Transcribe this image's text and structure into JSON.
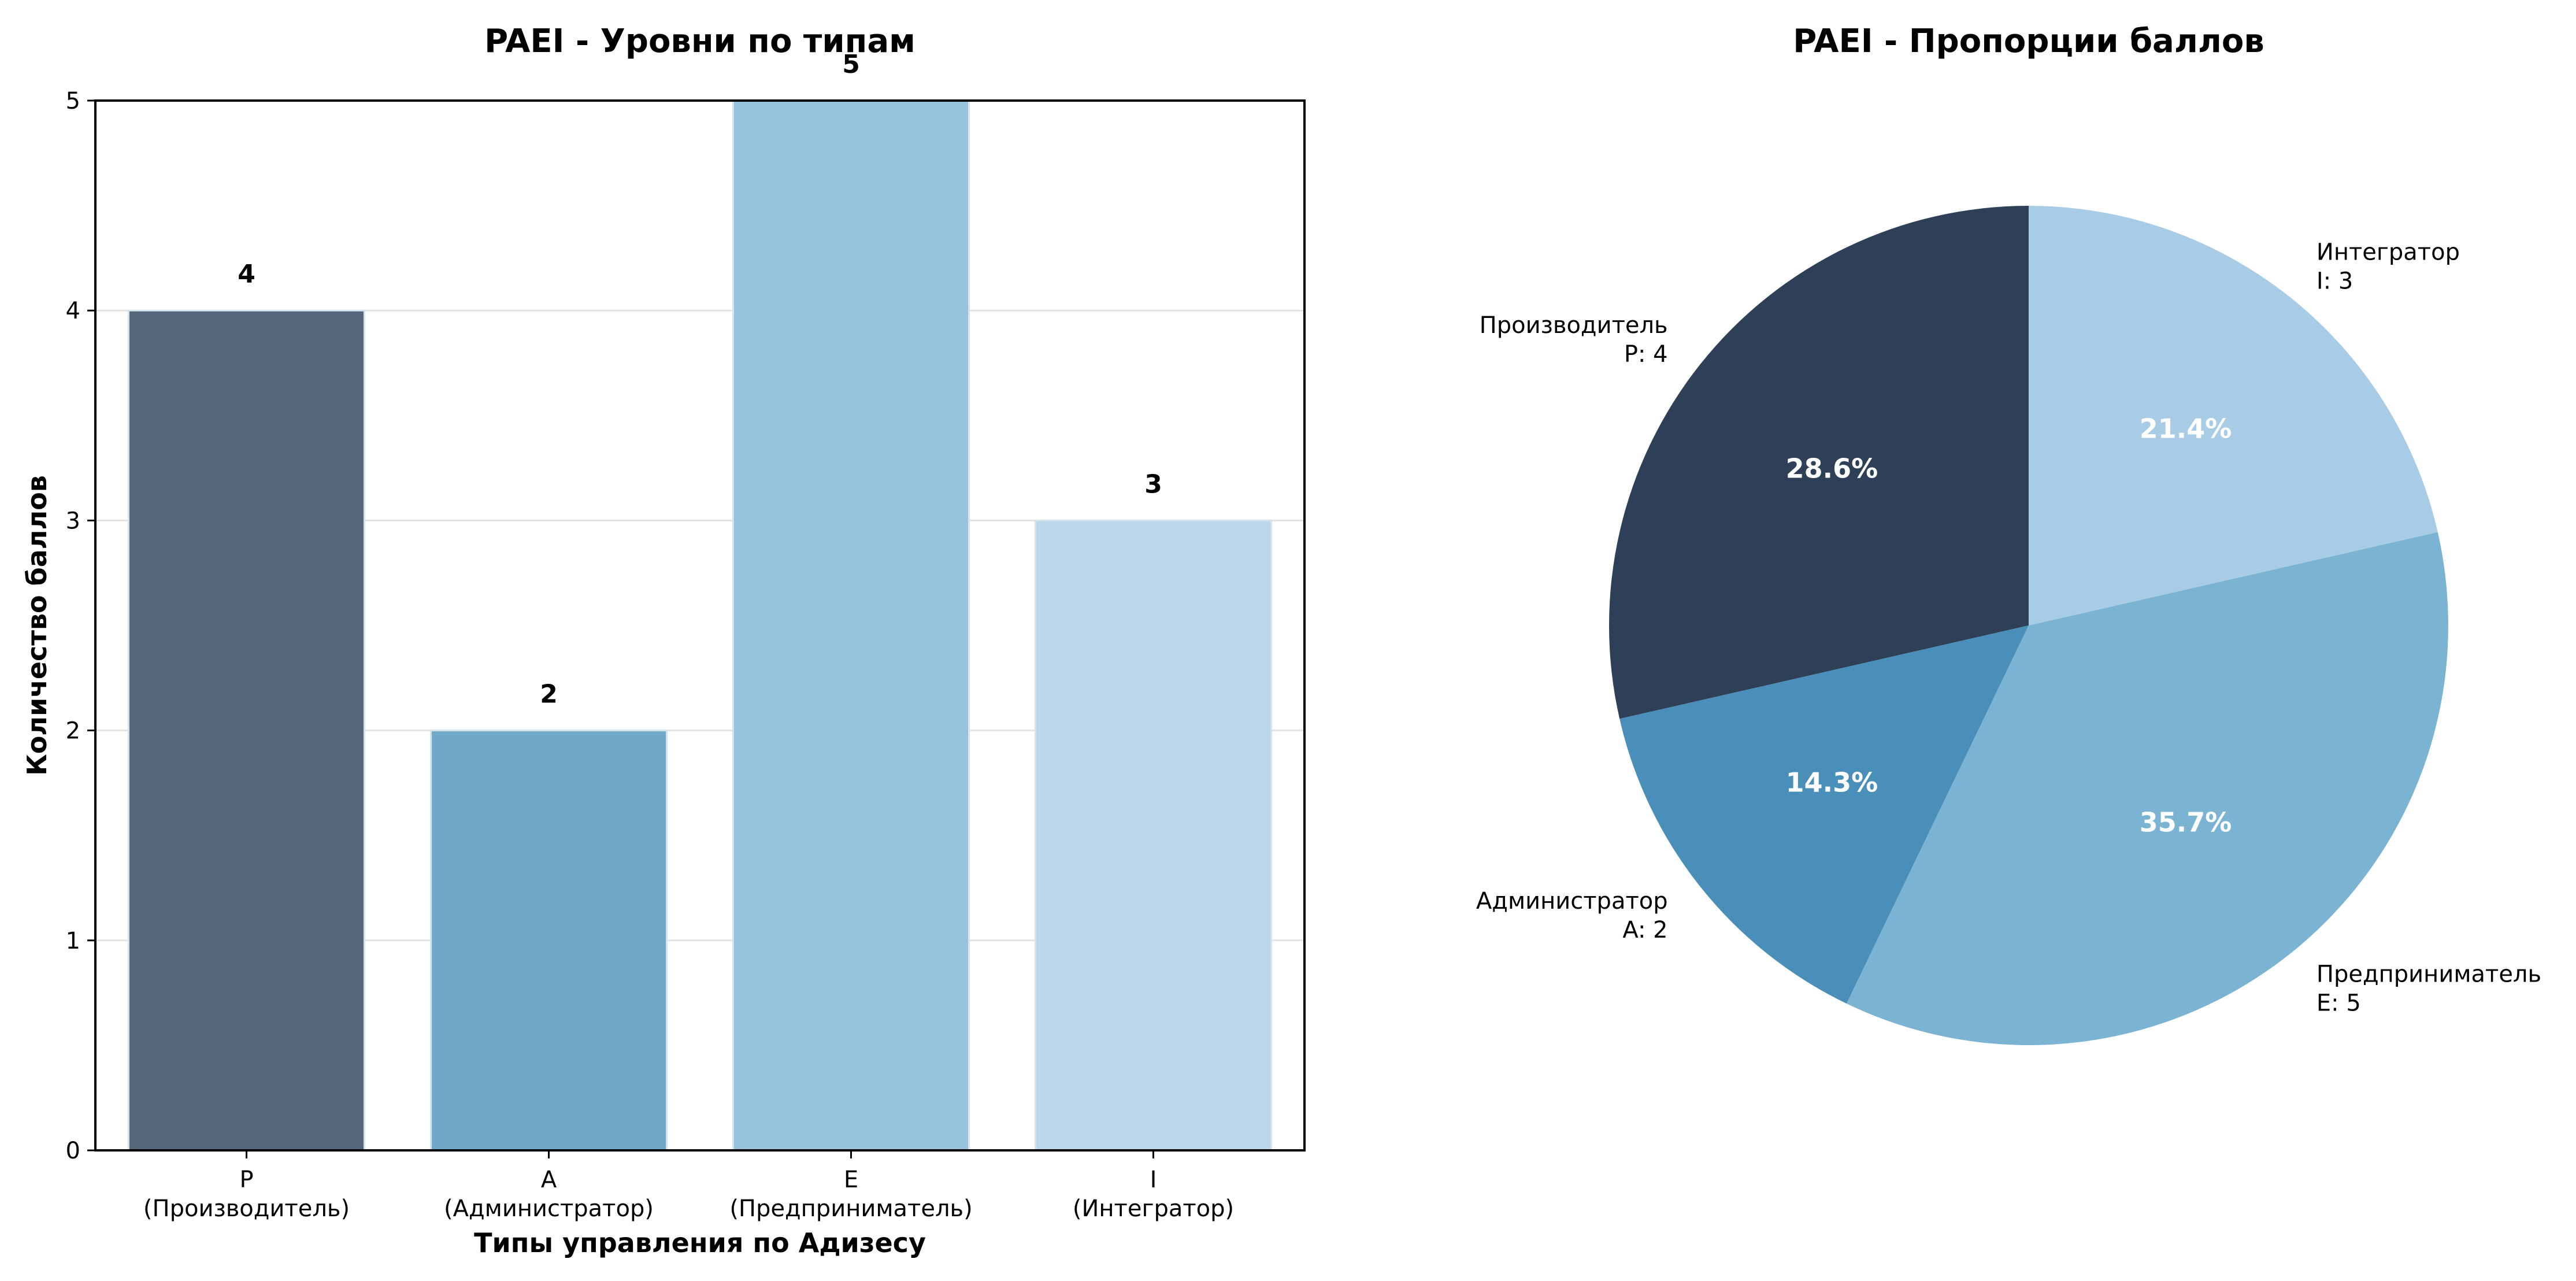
{
  "chart_data": [
    {
      "type": "bar",
      "title": "PAEI - Уровни по типам",
      "xlabel": "Типы управления по Адизесу",
      "ylabel": "Количество баллов",
      "ylim": [
        0,
        5
      ],
      "yticks": [
        "0",
        "1",
        "2",
        "3",
        "4",
        "5"
      ],
      "grid": "y",
      "categories": [
        {
          "code": "P",
          "name": "(Производитель)"
        },
        {
          "code": "A",
          "name": "(Администратор)"
        },
        {
          "code": "E",
          "name": "(Предприниматель)"
        },
        {
          "code": "I",
          "name": "(Интегратор)"
        }
      ],
      "values": [
        4,
        2,
        5,
        3
      ],
      "value_labels": [
        "4",
        "2",
        "5",
        "3"
      ],
      "colors": [
        "#56667a",
        "#6fa8c8",
        "#96c2db",
        "#bad6ea"
      ]
    },
    {
      "type": "pie",
      "title": "PAEI - Пропорции баллов",
      "slices": [
        {
          "name": "Производитель",
          "label": "P: 4",
          "value": 4,
          "percent": "28.6%",
          "color": "#2e4057"
        },
        {
          "name": "Администратор",
          "label": "A: 2",
          "value": 2,
          "percent": "14.3%",
          "color": "#4a8fba"
        },
        {
          "name": "Предприниматель",
          "label": "E: 5",
          "value": 5,
          "percent": "35.7%",
          "color": "#7bb3d3"
        },
        {
          "name": "Интегратор",
          "label": "I: 3",
          "value": 3,
          "percent": "21.4%",
          "color": "#a8cce6"
        }
      ],
      "start": "top",
      "direction": "counterclockwise"
    }
  ]
}
